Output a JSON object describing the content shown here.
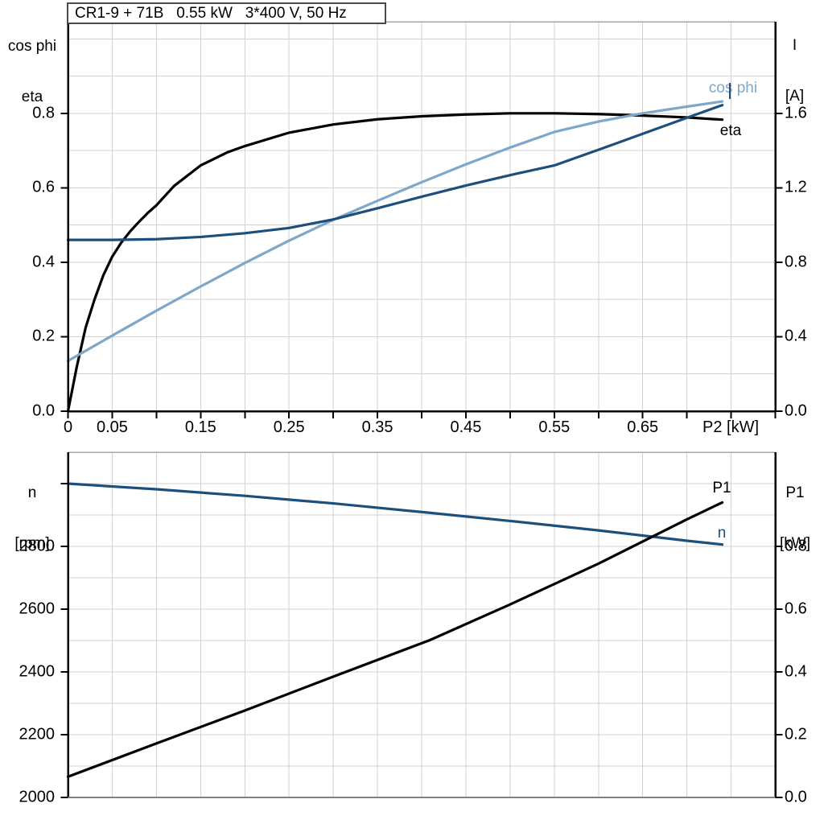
{
  "header": {
    "title": "CR1-9 + 71B   0.55 kW   3*400 V, 50 Hz"
  },
  "colors": {
    "black": "#000000",
    "dark_blue": "#1c4f7c",
    "light_blue": "#7fa7c9",
    "grid": "#d2d2d2",
    "frame_gray": "#a6a6a6",
    "bottom_frame_gray": "#808080",
    "axis": "#000000",
    "background": "#ffffff"
  },
  "top_chart": {
    "left_axis_title_line1": "cos phi",
    "left_axis_title_line2": "eta",
    "right_axis_title_line1": "I",
    "right_axis_title_line2": "[A]"
  },
  "bottom_chart": {
    "left_axis_title_line1": "n",
    "left_axis_title_line2": "[rpm]",
    "right_axis_title_line1": "P1",
    "right_axis_title_line2": "[kW]"
  },
  "chart_data": [
    {
      "type": "line",
      "title": "CR1-9 + 71B   0.55 kW   3*400 V, 50 Hz",
      "xlabel": "P2 [kW]",
      "xlim": [
        0,
        0.8
      ],
      "x_grid_step": 0.05,
      "x_tick_step": 0.05,
      "x_ticks": [
        {
          "v": 0,
          "t": "0"
        },
        {
          "v": 0.05,
          "t": "0.05"
        },
        {
          "v": 0.15,
          "t": "0.15"
        },
        {
          "v": 0.25,
          "t": "0.25"
        },
        {
          "v": 0.35,
          "t": "0.35"
        },
        {
          "v": 0.45,
          "t": "0.45"
        },
        {
          "v": 0.55,
          "t": "0.55"
        },
        {
          "v": 0.65,
          "t": "0.65"
        }
      ],
      "left_axis": {
        "label": "cos phi / eta",
        "lim": [
          0,
          1.046
        ],
        "grid_step": 0.1,
        "ticks": [
          {
            "v": 0.0,
            "t": "0.0"
          },
          {
            "v": 0.2,
            "t": "0.2"
          },
          {
            "v": 0.4,
            "t": "0.4"
          },
          {
            "v": 0.6,
            "t": "0.6"
          },
          {
            "v": 0.8,
            "t": "0.8"
          }
        ]
      },
      "right_axis": {
        "label": "I [A]",
        "lim": [
          0,
          2.092
        ],
        "ticks": [
          {
            "v": 0.0,
            "t": "0.0"
          },
          {
            "v": 0.4,
            "t": "0.4"
          },
          {
            "v": 0.8,
            "t": "0.8"
          },
          {
            "v": 1.2,
            "t": "1.2"
          },
          {
            "v": 1.6,
            "t": "1.6"
          }
        ]
      },
      "legend_position": "end-of-curve",
      "grid": true,
      "series": [
        {
          "name": "eta",
          "axis": "left",
          "color": "black",
          "x": [
            0,
            0.01,
            0.02,
            0.03,
            0.04,
            0.05,
            0.06,
            0.07,
            0.08,
            0.09,
            0.1,
            0.12,
            0.15,
            0.18,
            0.2,
            0.25,
            0.3,
            0.35,
            0.4,
            0.45,
            0.5,
            0.55,
            0.6,
            0.65,
            0.7,
            0.74
          ],
          "y": [
            0,
            0.12,
            0.225,
            0.3,
            0.365,
            0.415,
            0.452,
            0.482,
            0.508,
            0.532,
            0.553,
            0.605,
            0.66,
            0.695,
            0.712,
            0.748,
            0.77,
            0.784,
            0.792,
            0.797,
            0.8,
            0.8,
            0.798,
            0.794,
            0.789,
            0.783
          ]
        },
        {
          "name": "cos phi",
          "axis": "left",
          "color": "light_blue",
          "x": [
            0,
            0.05,
            0.1,
            0.15,
            0.2,
            0.25,
            0.3,
            0.35,
            0.4,
            0.45,
            0.5,
            0.55,
            0.6,
            0.65,
            0.7,
            0.74
          ],
          "y": [
            0.135,
            0.203,
            0.27,
            0.335,
            0.398,
            0.458,
            0.514,
            0.565,
            0.615,
            0.663,
            0.708,
            0.75,
            0.778,
            0.8,
            0.818,
            0.832
          ]
        },
        {
          "name": "I",
          "axis": "right",
          "color": "dark_blue",
          "x": [
            0,
            0.05,
            0.1,
            0.15,
            0.2,
            0.25,
            0.3,
            0.35,
            0.4,
            0.45,
            0.5,
            0.55,
            0.6,
            0.65,
            0.7,
            0.74
          ],
          "y": [
            0.92,
            0.92,
            0.924,
            0.936,
            0.956,
            0.984,
            1.03,
            1.09,
            1.152,
            1.212,
            1.268,
            1.32,
            1.404,
            1.49,
            1.576,
            1.644
          ]
        }
      ]
    },
    {
      "type": "line",
      "title": "",
      "xlabel": "",
      "xlim": [
        0,
        0.8
      ],
      "x_grid_step": 0.05,
      "x_tick_step": 0,
      "x_ticks": [],
      "left_axis": {
        "label": "n [rpm]",
        "lim": [
          2000,
          3100
        ],
        "grid_step": 100,
        "ticks": [
          {
            "v": 2000,
            "t": "2000"
          },
          {
            "v": 2200,
            "t": "2200"
          },
          {
            "v": 2400,
            "t": "2400"
          },
          {
            "v": 2600,
            "t": "2600"
          },
          {
            "v": 2800,
            "t": "2800"
          },
          {
            "v": 3000,
            "t": ""
          }
        ]
      },
      "right_axis": {
        "label": "P1 [kW]",
        "lim": [
          0,
          1.1
        ],
        "ticks": [
          {
            "v": 0.0,
            "t": "0.0"
          },
          {
            "v": 0.2,
            "t": "0.2"
          },
          {
            "v": 0.4,
            "t": "0.4"
          },
          {
            "v": 0.6,
            "t": "0.6"
          },
          {
            "v": 0.8,
            "t": "0.8"
          }
        ]
      },
      "legend_position": "end-of-curve",
      "grid": true,
      "series": [
        {
          "name": "n",
          "axis": "left",
          "color": "dark_blue",
          "x": [
            0,
            0.1,
            0.2,
            0.3,
            0.409,
            0.5,
            0.6,
            0.7,
            0.74
          ],
          "y": [
            3000,
            2982,
            2961,
            2937,
            2907,
            2881,
            2851,
            2818,
            2806
          ]
        },
        {
          "name": "P1",
          "axis": "right",
          "color": "black",
          "x": [
            0,
            0.1,
            0.2,
            0.3,
            0.409,
            0.5,
            0.6,
            0.7,
            0.74
          ],
          "y": [
            0.066,
            0.172,
            0.277,
            0.385,
            0.501,
            0.615,
            0.745,
            0.886,
            0.94
          ]
        }
      ]
    }
  ]
}
